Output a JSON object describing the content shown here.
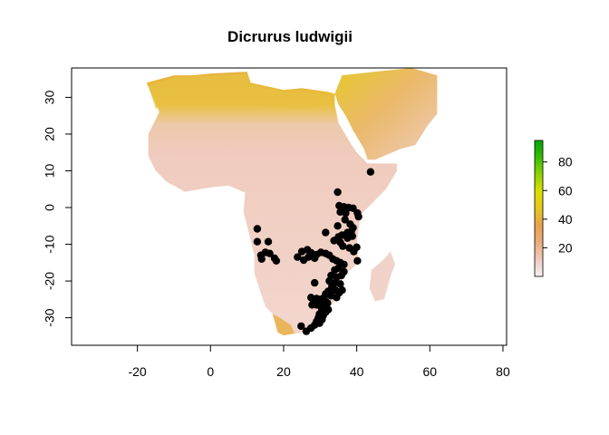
{
  "chart_data": {
    "type": "scatter",
    "title": "Dicrurus ludwigii",
    "xlabel": "",
    "ylabel": "",
    "xlim": [
      -38,
      81
    ],
    "ylim": [
      -37.5,
      38
    ],
    "x_ticks": [
      -20,
      0,
      20,
      40,
      60,
      80
    ],
    "y_ticks": [
      -30,
      -20,
      -10,
      0,
      10,
      20,
      30
    ],
    "x_tick_labels": [
      "-20",
      "0",
      "20",
      "40",
      "60",
      "80"
    ],
    "y_tick_labels": [
      "-30",
      "-20",
      "-10",
      "0",
      "10",
      "20",
      "30"
    ],
    "grid": false,
    "legend": {
      "position": "right",
      "range": [
        0,
        95
      ],
      "ticks": [
        20,
        40,
        60,
        80
      ],
      "tick_labels": [
        "20",
        "40",
        "60",
        "80"
      ],
      "colors": [
        "#f2f2f2",
        "#f0c9c0",
        "#ebad7a",
        "#e6a24f",
        "#e6c81c",
        "#d9e000",
        "#8fd400",
        "#35bf00",
        "#00a600"
      ]
    },
    "raster_colors": {
      "low": "#f1d4cc",
      "mid": "#efbfae",
      "high": "#e9b35e",
      "desert": "#e4c32e"
    },
    "point_color": "#000000",
    "points": [
      {
        "x": 43.8,
        "y": 9.7
      },
      {
        "x": 34.8,
        "y": 4.2
      },
      {
        "x": 35.2,
        "y": 0.5
      },
      {
        "x": 36.5,
        "y": 0.2
      },
      {
        "x": 37.8,
        "y": 0.0
      },
      {
        "x": 39.0,
        "y": -0.2
      },
      {
        "x": 35.5,
        "y": -1.2
      },
      {
        "x": 37.0,
        "y": -1.5
      },
      {
        "x": 40.2,
        "y": -1.5
      },
      {
        "x": 40.5,
        "y": -2.5
      },
      {
        "x": 36.8,
        "y": -3.3
      },
      {
        "x": 38.2,
        "y": -4.5
      },
      {
        "x": 34.8,
        "y": -5.0
      },
      {
        "x": 39.0,
        "y": -5.5
      },
      {
        "x": 38.5,
        "y": -6.5
      },
      {
        "x": 37.5,
        "y": -6.8
      },
      {
        "x": 31.5,
        "y": -6.8
      },
      {
        "x": 36.0,
        "y": -7.5
      },
      {
        "x": 35.0,
        "y": -8.0
      },
      {
        "x": 38.8,
        "y": -7.8
      },
      {
        "x": 37.5,
        "y": -8.3
      },
      {
        "x": 33.8,
        "y": -9.0
      },
      {
        "x": 35.5,
        "y": -9.5
      },
      {
        "x": 36.2,
        "y": -10.5
      },
      {
        "x": 38.0,
        "y": -11.0
      },
      {
        "x": 40.0,
        "y": -10.8
      },
      {
        "x": 39.2,
        "y": -12.0
      },
      {
        "x": 40.2,
        "y": -14.5
      },
      {
        "x": 12.8,
        "y": -5.8
      },
      {
        "x": 12.8,
        "y": -9.3
      },
      {
        "x": 15.8,
        "y": -9.3
      },
      {
        "x": 16.2,
        "y": -12.5
      },
      {
        "x": 13.8,
        "y": -13.0
      },
      {
        "x": 15.0,
        "y": -12.2
      },
      {
        "x": 17.5,
        "y": -13.8
      },
      {
        "x": 18.0,
        "y": -14.5
      },
      {
        "x": 14.0,
        "y": -14.0
      },
      {
        "x": 23.8,
        "y": -13.5
      },
      {
        "x": 25.0,
        "y": -12.0
      },
      {
        "x": 25.5,
        "y": -14.3
      },
      {
        "x": 26.5,
        "y": -11.5
      },
      {
        "x": 27.5,
        "y": -12.3
      },
      {
        "x": 26.8,
        "y": -13.5
      },
      {
        "x": 28.5,
        "y": -13.8
      },
      {
        "x": 29.0,
        "y": -12.8
      },
      {
        "x": 30.2,
        "y": -12.2
      },
      {
        "x": 31.5,
        "y": -12.5
      },
      {
        "x": 32.5,
        "y": -13.0
      },
      {
        "x": 33.5,
        "y": -14.0
      },
      {
        "x": 34.5,
        "y": -14.5
      },
      {
        "x": 35.5,
        "y": -15.0
      },
      {
        "x": 36.5,
        "y": -15.5
      },
      {
        "x": 35.0,
        "y": -16.5
      },
      {
        "x": 34.0,
        "y": -17.0
      },
      {
        "x": 36.5,
        "y": -17.5
      },
      {
        "x": 35.8,
        "y": -18.5
      },
      {
        "x": 34.5,
        "y": -19.0
      },
      {
        "x": 33.0,
        "y": -18.5
      },
      {
        "x": 32.5,
        "y": -20.0
      },
      {
        "x": 34.0,
        "y": -20.5
      },
      {
        "x": 35.5,
        "y": -20.8
      },
      {
        "x": 33.2,
        "y": -21.5
      },
      {
        "x": 34.2,
        "y": -22.5
      },
      {
        "x": 35.2,
        "y": -23.2
      },
      {
        "x": 36.0,
        "y": -22.5
      },
      {
        "x": 32.2,
        "y": -22.8
      },
      {
        "x": 31.5,
        "y": -23.5
      },
      {
        "x": 33.0,
        "y": -24.0
      },
      {
        "x": 34.5,
        "y": -24.5
      },
      {
        "x": 28.5,
        "y": -20.5
      },
      {
        "x": 27.5,
        "y": -24.5
      },
      {
        "x": 28.2,
        "y": -25.2
      },
      {
        "x": 29.0,
        "y": -24.8
      },
      {
        "x": 30.0,
        "y": -25.0
      },
      {
        "x": 31.0,
        "y": -24.6
      },
      {
        "x": 30.5,
        "y": -25.8
      },
      {
        "x": 31.5,
        "y": -25.5
      },
      {
        "x": 32.0,
        "y": -26.0
      },
      {
        "x": 27.8,
        "y": -26.5
      },
      {
        "x": 29.0,
        "y": -26.5
      },
      {
        "x": 30.2,
        "y": -27.0
      },
      {
        "x": 31.5,
        "y": -27.2
      },
      {
        "x": 32.2,
        "y": -27.8
      },
      {
        "x": 30.5,
        "y": -28.0
      },
      {
        "x": 31.5,
        "y": -28.5
      },
      {
        "x": 29.8,
        "y": -29.0
      },
      {
        "x": 30.8,
        "y": -29.5
      },
      {
        "x": 29.5,
        "y": -30.0
      },
      {
        "x": 30.5,
        "y": -30.5
      },
      {
        "x": 29.0,
        "y": -31.0
      },
      {
        "x": 29.8,
        "y": -31.5
      },
      {
        "x": 28.5,
        "y": -32.0
      },
      {
        "x": 27.5,
        "y": -32.8
      },
      {
        "x": 24.8,
        "y": -32.3
      },
      {
        "x": 26.2,
        "y": -33.7
      }
    ]
  }
}
